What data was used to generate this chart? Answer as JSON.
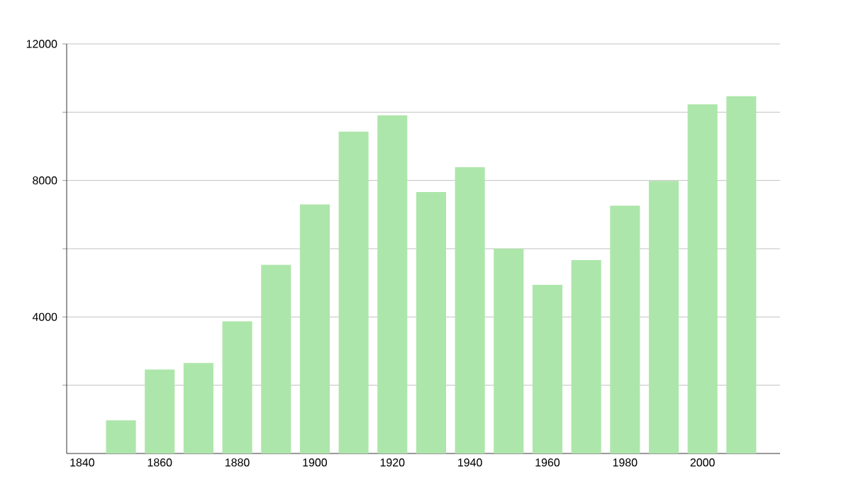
{
  "chart_data": {
    "type": "bar",
    "x": [
      1850,
      1860,
      1870,
      1880,
      1890,
      1900,
      1910,
      1920,
      1930,
      1940,
      1950,
      1960,
      1970,
      1980,
      1990,
      2000,
      2010
    ],
    "values": [
      970,
      2460,
      2650,
      3870,
      5530,
      7300,
      9430,
      9910,
      7660,
      8390,
      6000,
      4940,
      5670,
      7260,
      7990,
      10230,
      10470
    ],
    "color": "#ade6aa",
    "xlim": [
      1836,
      2020
    ],
    "xticks": [
      1840,
      1860,
      1880,
      1900,
      1920,
      1940,
      1960,
      1980,
      2000
    ],
    "ylim": [
      0,
      12000
    ],
    "yticks": [
      {
        "value": 2000,
        "label": null
      },
      4000,
      {
        "value": 6000,
        "label": null
      },
      8000,
      {
        "value": 10000,
        "label": null
      },
      12000
    ],
    "grid": "y"
  }
}
